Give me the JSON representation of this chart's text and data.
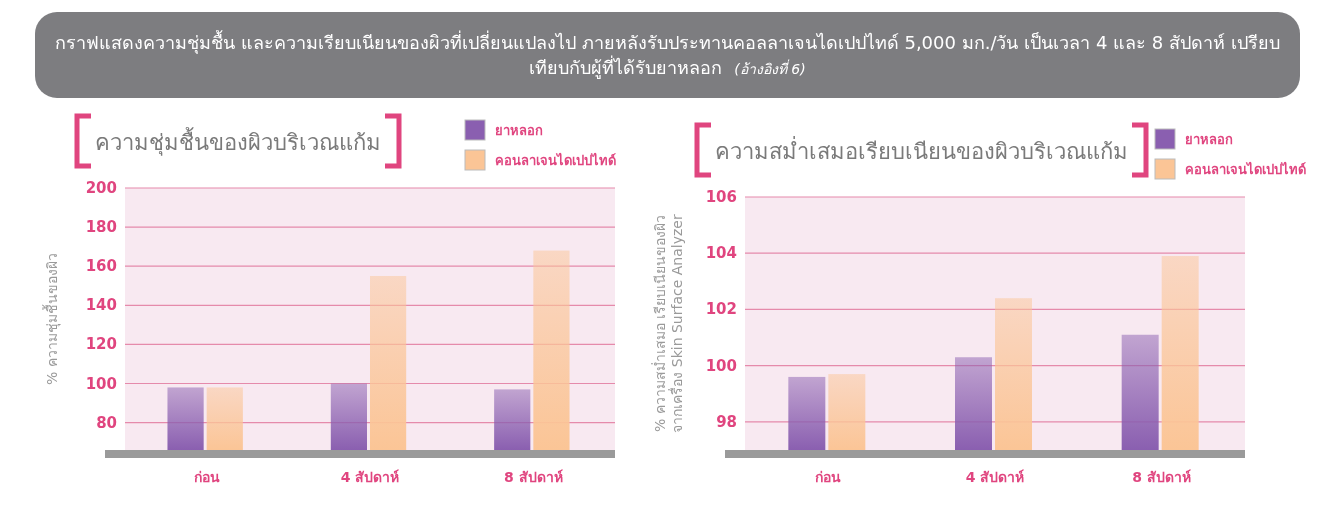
{
  "chart_data": [
    {
      "type": "bar",
      "title": "กราฟแสดงความชุ่มชื้น และความเรียบเนียนของผิวที่เปลี่ยนแปลงไป ภายหลังรับประทานคอลลาเจนไดเปปไทด์ 5,000 มก./วัน เป็นเวลา 4 และ 8 สัปดาห์ เปรียบเทียบกับผู้ที่ได้รับยาหลอก",
      "annotations": [
        "(อ้างอิงที่ 6)"
      ],
      "subtitle": "ความชุ่มชื้นของผิวบริเวณแก้ม",
      "ylabel": "% ความชุ่มชื้นของผิว",
      "categories": [
        "ก่อน",
        "4 สัปดาห์",
        "8 สัปดาห์"
      ],
      "series": [
        {
          "name": "ยาหลอก",
          "color": "#8a5fb0",
          "values": [
            98,
            100,
            97
          ]
        },
        {
          "name": "คอนลาเจนไดเปปไทด์",
          "color": "#fbc596",
          "values": [
            98,
            155,
            168
          ]
        }
      ],
      "ylim": [
        66,
        200
      ],
      "yticks": [
        80,
        100,
        120,
        140,
        160,
        180,
        200
      ],
      "grid": "y",
      "legend": "top right"
    },
    {
      "type": "bar",
      "subtitle": "ความสม่ำเสมอเรียบเนียนของผิวบริเวณแก้ม",
      "ylabel": "% ความสม่ำเสมอ เรียบเนียนของผิว\nจากเครื่อง Skin Surface Analyzer",
      "categories": [
        "ก่อน",
        "4 สัปดาห์",
        "8 สัปดาห์"
      ],
      "series": [
        {
          "name": "ยาหลอก",
          "color": "#8a5fb0",
          "values": [
            99.6,
            100.3,
            101.1
          ]
        },
        {
          "name": "คอนลาเจนไดเปปไทด์",
          "color": "#fbc596",
          "values": [
            99.7,
            102.4,
            103.9
          ]
        }
      ],
      "ylim": [
        97,
        106
      ],
      "yticks": [
        98,
        100,
        102,
        104,
        106
      ],
      "grid": "y",
      "legend": "top right"
    }
  ]
}
